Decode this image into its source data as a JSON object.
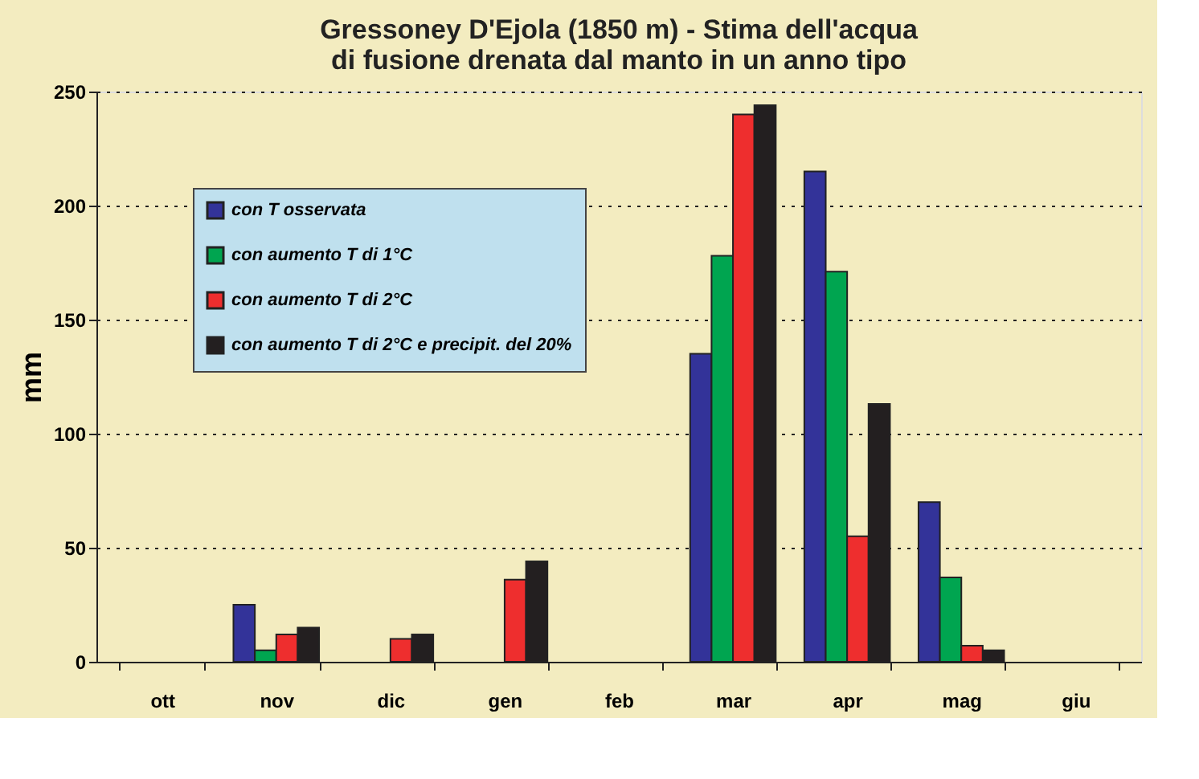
{
  "chart_data": {
    "type": "bar",
    "title": [
      "Gressoney D'Ejola (1850 m) - Stima dell'acqua",
      "di fusione drenata dal manto in un anno tipo"
    ],
    "ylabel": "mm",
    "categories": [
      "ott",
      "nov",
      "dic",
      "gen",
      "feb",
      "mar",
      "apr",
      "mag",
      "giu"
    ],
    "series": [
      {
        "name": "con T osservata",
        "color": "#333399",
        "values": [
          null,
          25,
          null,
          null,
          null,
          135,
          215,
          70,
          null
        ]
      },
      {
        "name": "con aumento T di 1°C",
        "color": "#00a550",
        "values": [
          null,
          5,
          null,
          null,
          null,
          178,
          171,
          37,
          null
        ]
      },
      {
        "name": "con aumento T di 2°C",
        "color": "#ee2e2e",
        "values": [
          null,
          12,
          10,
          36,
          null,
          240,
          55,
          7,
          null
        ]
      },
      {
        "name": "con aumento T di 2°C e precipit. del 20%",
        "color": "#231f20",
        "values": [
          null,
          15,
          12,
          44,
          null,
          244,
          113,
          5,
          null
        ]
      }
    ],
    "ylim": [
      0,
      250
    ],
    "yticks": [
      0,
      50,
      100,
      150,
      200,
      250
    ],
    "grid": "y",
    "legend": "top left"
  }
}
